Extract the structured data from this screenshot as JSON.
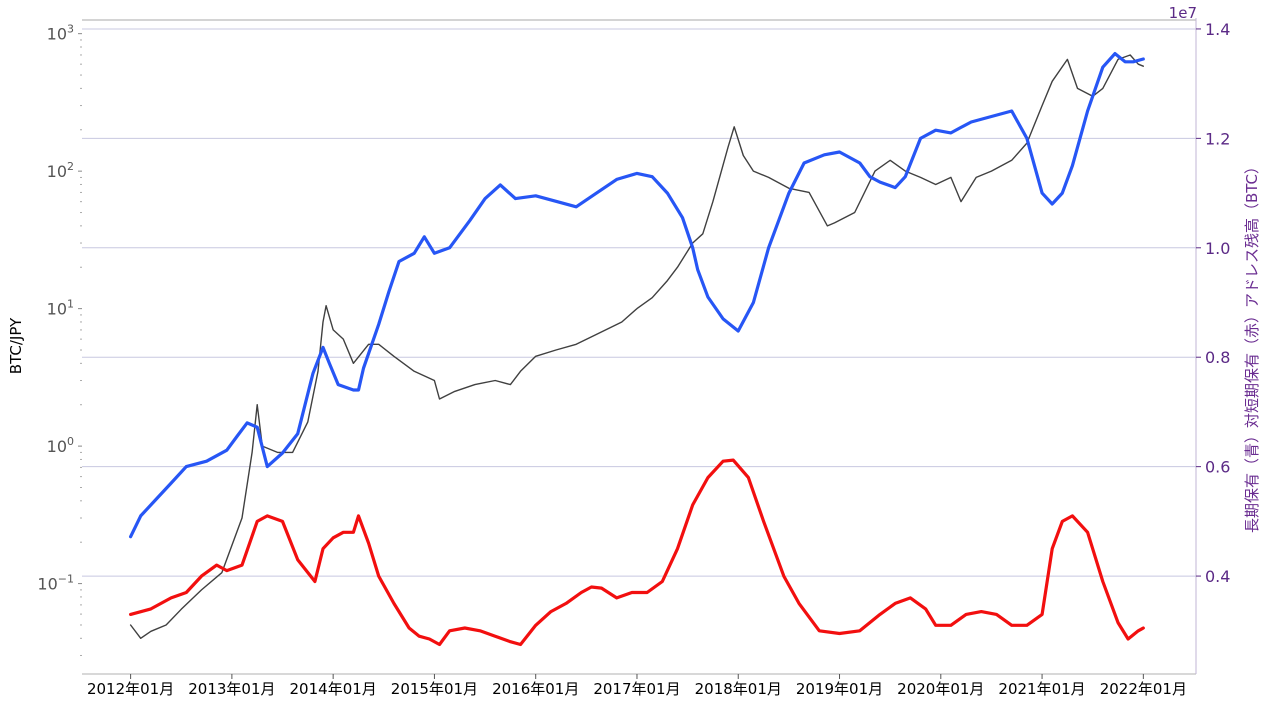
{
  "chart_data": {
    "type": "line",
    "ylabel_left": "BTC/JPY",
    "ylabel_right": "長期保有（青）対短期保有（赤）アドレス残高（BTC）",
    "right_offset_label": "1e7",
    "y_left_scale": "log",
    "y_left_ticks": [
      "10",
      "10",
      "10",
      "10",
      "10"
    ],
    "y_left_exponents": [
      "3",
      "2",
      "1",
      "0",
      "−1"
    ],
    "y_left_values": [
      1000,
      100,
      10,
      1,
      0.1
    ],
    "ylim_left": [
      0.022,
      1300
    ],
    "ylim_right": [
      0.221,
      1.42
    ],
    "y_right_ticks": [
      "0.4",
      "0.6",
      "0.8",
      "1.0",
      "1.2",
      "1.4"
    ],
    "y_right_values": [
      0.4,
      0.6,
      0.8,
      1.0,
      1.2,
      1.4
    ],
    "x_ticks": [
      "2012年01月",
      "2013年01月",
      "2014年01月",
      "2015年01月",
      "2016年01月",
      "2017年01月",
      "2018年01月",
      "2019年01月",
      "2020年01月",
      "2021年01月",
      "2022年01月"
    ],
    "x_tick_values": [
      2012,
      2013,
      2014,
      2015,
      2016,
      2017,
      2018,
      2019,
      2020,
      2021,
      2022
    ],
    "xlim": [
      2011.52,
      2022.52
    ],
    "grid": "horizontal at right-axis ticks",
    "series": [
      {
        "color": "#404040",
        "axis": "left",
        "x": [
          2012.0,
          2012.1,
          2012.2,
          2012.35,
          2012.5,
          2012.7,
          2012.9,
          2013.1,
          2013.2,
          2013.25,
          2013.3,
          2013.45,
          2013.6,
          2013.75,
          2013.85,
          2013.9,
          2013.93,
          2014.0,
          2014.1,
          2014.2,
          2014.35,
          2014.45,
          2014.6,
          2014.8,
          2015.0,
          2015.05,
          2015.2,
          2015.4,
          2015.6,
          2015.75,
          2015.85,
          2016.0,
          2016.2,
          2016.4,
          2016.6,
          2016.85,
          2017.0,
          2017.15,
          2017.3,
          2017.4,
          2017.55,
          2017.65,
          2017.75,
          2017.9,
          2017.96,
          2018.05,
          2018.15,
          2018.3,
          2018.5,
          2018.7,
          2018.88,
          2018.95,
          2019.15,
          2019.35,
          2019.5,
          2019.65,
          2019.8,
          2019.95,
          2020.1,
          2020.2,
          2020.35,
          2020.5,
          2020.7,
          2020.85,
          2021.0,
          2021.1,
          2021.25,
          2021.35,
          2021.5,
          2021.6,
          2021.75,
          2021.87,
          2021.95,
          2022.0
        ],
        "values": [
          0.05,
          0.04,
          0.045,
          0.05,
          0.065,
          0.09,
          0.12,
          0.3,
          0.9,
          2.0,
          1.0,
          0.9,
          0.9,
          1.5,
          3.5,
          8.0,
          10.5,
          7.0,
          6.0,
          4.0,
          5.5,
          5.5,
          4.5,
          3.5,
          3.0,
          2.2,
          2.5,
          2.8,
          3.0,
          2.8,
          3.5,
          4.5,
          5.0,
          5.5,
          6.5,
          8.0,
          10.0,
          12.0,
          16.0,
          20.0,
          30.0,
          35.0,
          60.0,
          150.0,
          210.0,
          130.0,
          100.0,
          90.0,
          75.0,
          70.0,
          40.0,
          42.0,
          50.0,
          100.0,
          120.0,
          100.0,
          90.0,
          80.0,
          90.0,
          60.0,
          90.0,
          100.0,
          120.0,
          160.0,
          300.0,
          450.0,
          650.0,
          400.0,
          350.0,
          400.0,
          650.0,
          700.0,
          600.0,
          580.0
        ]
      },
      {
        "color": "#2756f5",
        "axis": "right",
        "x": [
          2012.0,
          2012.1,
          2012.25,
          2012.4,
          2012.55,
          2012.75,
          2012.95,
          2013.05,
          2013.15,
          2013.25,
          2013.35,
          2013.5,
          2013.65,
          2013.8,
          2013.9,
          2013.96,
          2014.05,
          2014.2,
          2014.25,
          2014.3,
          2014.45,
          2014.55,
          2014.65,
          2014.8,
          2014.9,
          2015.0,
          2015.15,
          2015.35,
          2015.5,
          2015.65,
          2015.8,
          2016.0,
          2016.2,
          2016.4,
          2016.6,
          2016.8,
          2017.0,
          2017.15,
          2017.3,
          2017.45,
          2017.55,
          2017.6,
          2017.7,
          2017.85,
          2018.0,
          2018.15,
          2018.3,
          2018.5,
          2018.65,
          2018.85,
          2019.0,
          2019.2,
          2019.3,
          2019.4,
          2019.55,
          2019.65,
          2019.8,
          2019.95,
          2020.1,
          2020.2,
          2020.3,
          2020.5,
          2020.7,
          2020.85,
          2021.0,
          2021.1,
          2021.2,
          2021.3,
          2021.45,
          2021.6,
          2021.72,
          2021.82,
          2021.9,
          2022.0
        ],
        "values": [
          0.472,
          0.51,
          0.54,
          0.57,
          0.6,
          0.61,
          0.63,
          0.655,
          0.68,
          0.672,
          0.6,
          0.625,
          0.66,
          0.77,
          0.818,
          0.79,
          0.75,
          0.74,
          0.74,
          0.78,
          0.86,
          0.92,
          0.975,
          0.99,
          1.02,
          0.99,
          1.0,
          1.05,
          1.09,
          1.115,
          1.09,
          1.095,
          1.085,
          1.075,
          1.1,
          1.125,
          1.136,
          1.13,
          1.1,
          1.055,
          1.0,
          0.96,
          0.91,
          0.87,
          0.848,
          0.9,
          1.0,
          1.1,
          1.155,
          1.17,
          1.175,
          1.155,
          1.13,
          1.12,
          1.11,
          1.13,
          1.2,
          1.215,
          1.21,
          1.22,
          1.23,
          1.24,
          1.25,
          1.2,
          1.1,
          1.08,
          1.1,
          1.15,
          1.25,
          1.33,
          1.355,
          1.34,
          1.34,
          1.345
        ]
      },
      {
        "color": "#f20f0f",
        "axis": "right",
        "x": [
          2012.0,
          2012.2,
          2012.4,
          2012.55,
          2012.7,
          2012.85,
          2012.95,
          2013.1,
          2013.25,
          2013.35,
          2013.5,
          2013.65,
          2013.82,
          2013.9,
          2014.0,
          2014.1,
          2014.2,
          2014.25,
          2014.35,
          2014.45,
          2014.6,
          2014.75,
          2014.85,
          2014.95,
          2015.05,
          2015.15,
          2015.3,
          2015.45,
          2015.6,
          2015.75,
          2015.85,
          2016.0,
          2016.15,
          2016.3,
          2016.45,
          2016.55,
          2016.65,
          2016.8,
          2016.95,
          2017.1,
          2017.25,
          2017.4,
          2017.55,
          2017.7,
          2017.85,
          2017.95,
          2018.1,
          2018.25,
          2018.45,
          2018.6,
          2018.8,
          2019.0,
          2019.2,
          2019.4,
          2019.55,
          2019.7,
          2019.85,
          2019.95,
          2020.1,
          2020.25,
          2020.4,
          2020.55,
          2020.7,
          2020.85,
          2021.0,
          2021.1,
          2021.2,
          2021.3,
          2021.45,
          2021.6,
          2021.75,
          2021.85,
          2021.95,
          2022.0
        ],
        "values": [
          0.33,
          0.34,
          0.36,
          0.37,
          0.4,
          0.42,
          0.41,
          0.42,
          0.5,
          0.51,
          0.5,
          0.43,
          0.39,
          0.45,
          0.47,
          0.48,
          0.48,
          0.51,
          0.46,
          0.4,
          0.35,
          0.305,
          0.29,
          0.285,
          0.275,
          0.3,
          0.305,
          0.3,
          0.29,
          0.28,
          0.275,
          0.31,
          0.335,
          0.35,
          0.37,
          0.38,
          0.378,
          0.36,
          0.37,
          0.37,
          0.39,
          0.45,
          0.53,
          0.58,
          0.61,
          0.612,
          0.58,
          0.5,
          0.4,
          0.35,
          0.3,
          0.295,
          0.3,
          0.33,
          0.35,
          0.36,
          0.34,
          0.31,
          0.31,
          0.33,
          0.335,
          0.33,
          0.31,
          0.31,
          0.33,
          0.45,
          0.5,
          0.51,
          0.48,
          0.39,
          0.315,
          0.285,
          0.3,
          0.305
        ]
      }
    ]
  }
}
